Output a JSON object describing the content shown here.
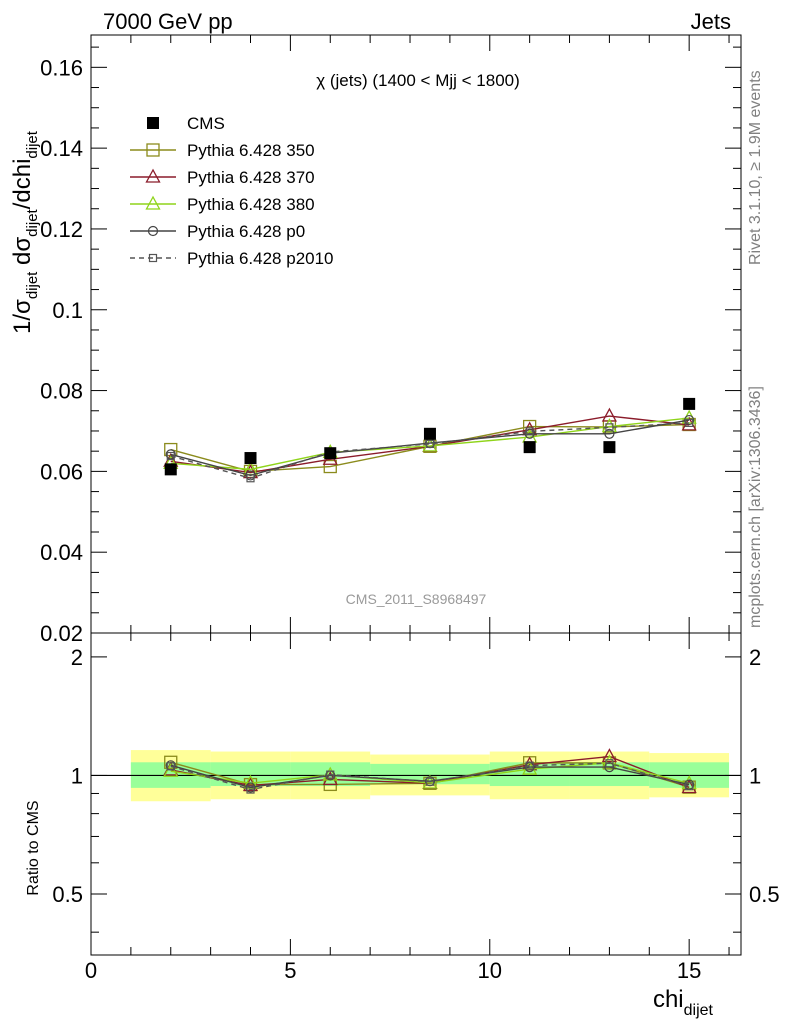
{
  "header": {
    "left": "7000 GeV pp",
    "right": "Jets"
  },
  "side_labels": {
    "rivet": "Rivet 3.1.10, ≥ 1.9M events",
    "mcplots": "mcplots.cern.ch [arXiv:1306.3436]"
  },
  "plot_title": "χ (jets) (1400 < Mjj < 1800)",
  "watermark": "CMS_2011_S8968497",
  "axes": {
    "main_ylabel": {
      "prefix": "1/σ",
      "s1": "dijet",
      "mid1": " dσ",
      "s2": "dijet",
      "mid2": "/dchi",
      "s3": "dijet"
    },
    "ratio_ylabel": "Ratio to CMS",
    "xlabel": {
      "main": "chi",
      "sub": "dijet"
    }
  },
  "chart_data": [
    {
      "type": "line",
      "panel": "main",
      "title": "χ (jets) (1400 < Mjj < 1800)",
      "xlim": [
        0,
        16.3
      ],
      "ylim": [
        0.02,
        0.168
      ],
      "x_ticks": [
        "0",
        "5",
        "10",
        "15"
      ],
      "y_ticks": [
        "0.02",
        "0.04",
        "0.06",
        "0.08",
        "0.1",
        "0.12",
        "0.14",
        "0.16"
      ],
      "x": [
        2,
        4,
        6,
        8.5,
        11,
        13,
        15
      ],
      "legend_position": "top-left",
      "series": [
        {
          "name": "CMS",
          "values": [
            0.0605,
            0.0633,
            0.0645,
            0.0693,
            0.066,
            0.066,
            0.0767
          ],
          "color": "#000000",
          "marker": "square-filled",
          "dash": "none"
        },
        {
          "name": "Pythia 6.428 350",
          "values": [
            0.0654,
            0.06,
            0.0612,
            0.0662,
            0.0711,
            0.071,
            0.0716
          ],
          "color": "#8b8b1c",
          "marker": "square-open",
          "dash": "solid"
        },
        {
          "name": "Pythia 6.428 370",
          "values": [
            0.0625,
            0.0597,
            0.063,
            0.0662,
            0.0703,
            0.0737,
            0.0715
          ],
          "color": "#8b1c2b",
          "marker": "triangle-open",
          "dash": "solid"
        },
        {
          "name": "Pythia 6.428 380",
          "values": [
            0.062,
            0.0605,
            0.0647,
            0.0663,
            0.0685,
            0.0711,
            0.0732
          ],
          "color": "#8fd41a",
          "marker": "triangle-open",
          "dash": "solid"
        },
        {
          "name": "Pythia 6.428 p0",
          "values": [
            0.0642,
            0.059,
            0.0645,
            0.067,
            0.0693,
            0.0693,
            0.0727
          ],
          "color": "#444444",
          "marker": "circle-open",
          "dash": "solid"
        },
        {
          "name": "Pythia 6.428 p2010",
          "values": [
            0.0638,
            0.0583,
            0.0648,
            0.0668,
            0.0699,
            0.0709,
            0.072
          ],
          "color": "#555555",
          "marker": "square-small-open",
          "dash": "dashed"
        }
      ]
    },
    {
      "type": "line",
      "panel": "ratio",
      "ylabel": "Ratio to CMS",
      "xlabel": "chi dijet",
      "xlim": [
        0,
        16.3
      ],
      "ylim": [
        0.35,
        2.3
      ],
      "log_y": true,
      "y_ticks": [
        "0.5",
        "1",
        "2"
      ],
      "x": [
        2,
        4,
        6,
        8.5,
        11,
        13,
        15
      ],
      "bands": {
        "edges": [
          1,
          3,
          5,
          7,
          10,
          12,
          14,
          16
        ],
        "inner_green": [
          [
            0.93,
            1.08
          ],
          [
            0.94,
            1.08
          ],
          [
            0.94,
            1.08
          ],
          [
            0.95,
            1.07
          ],
          [
            0.94,
            1.08
          ],
          [
            0.94,
            1.08
          ],
          [
            0.93,
            1.08
          ]
        ],
        "outer_yellow": [
          [
            0.86,
            1.16
          ],
          [
            0.87,
            1.15
          ],
          [
            0.87,
            1.15
          ],
          [
            0.89,
            1.13
          ],
          [
            0.87,
            1.15
          ],
          [
            0.87,
            1.15
          ],
          [
            0.88,
            1.14
          ]
        ],
        "inner_color": "#99ff99",
        "outer_color": "#ffff99"
      },
      "series": [
        {
          "name": "Pythia 6.428 350",
          "values": [
            1.08,
            0.948,
            0.949,
            0.955,
            1.077,
            1.076,
            0.934
          ],
          "color": "#8b8b1c",
          "marker": "square-open",
          "dash": "solid"
        },
        {
          "name": "Pythia 6.428 370",
          "values": [
            1.033,
            0.943,
            0.977,
            0.955,
            1.065,
            1.117,
            0.932
          ],
          "color": "#8b1c2b",
          "marker": "triangle-open",
          "dash": "solid"
        },
        {
          "name": "Pythia 6.428 380",
          "values": [
            1.025,
            0.956,
            1.003,
            0.957,
            1.038,
            1.077,
            0.954
          ],
          "color": "#8fd41a",
          "marker": "triangle-open",
          "dash": "solid"
        },
        {
          "name": "Pythia 6.428 p0",
          "values": [
            1.061,
            0.932,
            1.0,
            0.967,
            1.05,
            1.05,
            0.948
          ],
          "color": "#444444",
          "marker": "circle-open",
          "dash": "solid"
        },
        {
          "name": "Pythia 6.428 p2010",
          "values": [
            1.055,
            0.921,
            1.005,
            0.964,
            1.059,
            1.074,
            0.939
          ],
          "color": "#555555",
          "marker": "square-small-open",
          "dash": "dashed"
        }
      ]
    }
  ]
}
